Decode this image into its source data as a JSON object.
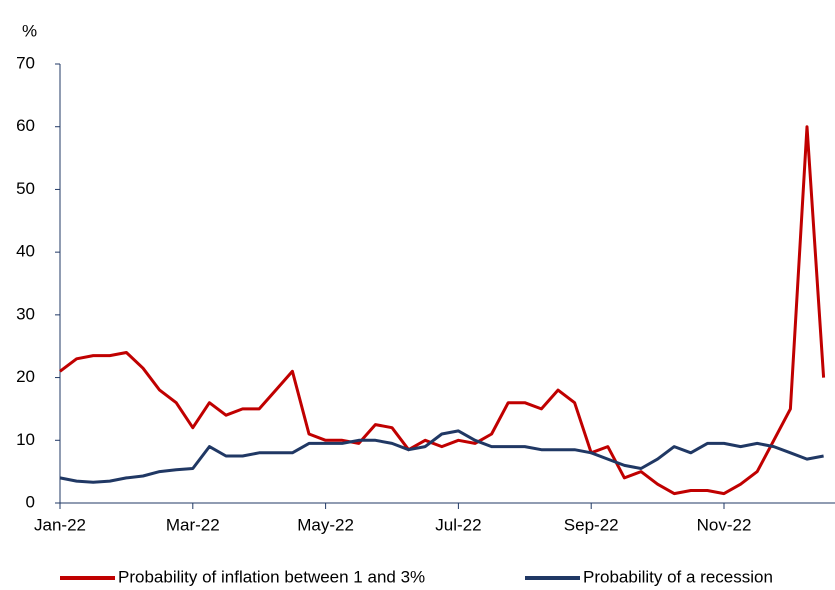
{
  "chart_data": {
    "type": "line",
    "y_label": "%",
    "categories": [
      "Jan-22",
      null,
      null,
      null,
      null,
      null,
      null,
      null,
      "Mar-22",
      null,
      null,
      null,
      null,
      null,
      null,
      null,
      "May-22",
      null,
      null,
      null,
      null,
      null,
      null,
      null,
      "Jul-22",
      null,
      null,
      null,
      null,
      null,
      null,
      null,
      "Sep-22",
      null,
      null,
      null,
      null,
      null,
      null,
      null,
      "Nov-22",
      null,
      null,
      null,
      null,
      null,
      null
    ],
    "series": [
      {
        "name": "Probability of inflation between 1 and 3%",
        "color": "#c00000",
        "values": [
          21,
          23,
          23.5,
          23.5,
          24,
          21.5,
          18,
          16,
          12,
          16,
          14,
          15,
          15,
          18,
          21,
          11,
          10,
          10,
          9.5,
          12.5,
          12,
          8.5,
          10,
          9,
          10,
          9.5,
          11,
          16,
          16,
          15,
          18,
          16,
          8,
          9,
          4,
          5,
          3,
          1.5,
          2,
          2,
          1.5,
          3,
          5,
          10,
          15,
          60,
          20
        ]
      },
      {
        "name": "Probability of a recession",
        "color": "#203864",
        "values": [
          4,
          3.5,
          3.3,
          3.5,
          4,
          4.3,
          5,
          5.3,
          5.5,
          9,
          7.5,
          7.5,
          8,
          8,
          8,
          9.5,
          9.5,
          9.5,
          10,
          10,
          9.5,
          8.5,
          9,
          11,
          11.5,
          10,
          9,
          9,
          9,
          8.5,
          8.5,
          8.5,
          8,
          7,
          6,
          5.5,
          7,
          9,
          8,
          9.5,
          9.5,
          9,
          9.5,
          9,
          8,
          7,
          7.5
        ]
      }
    ],
    "ylim": [
      0,
      70
    ],
    "yticks": [
      0,
      10,
      20,
      30,
      40,
      50,
      60,
      70
    ],
    "grid": false
  }
}
